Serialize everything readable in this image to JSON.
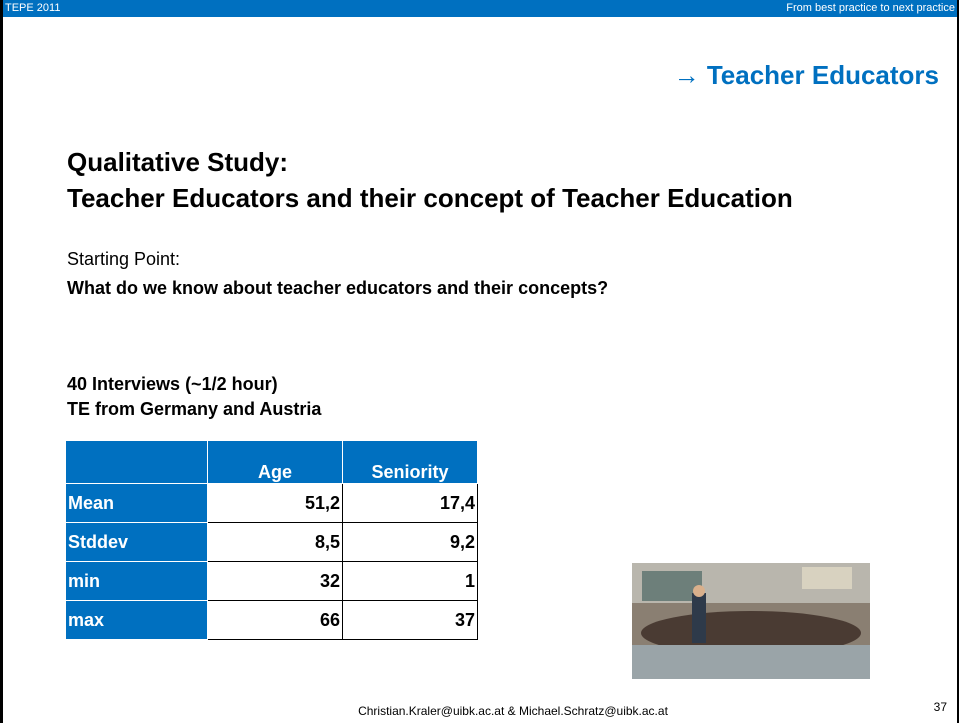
{
  "header": {
    "left": "TEPE 2011",
    "right": "From best practice to next practice"
  },
  "section": "→ Teacher Educators",
  "title": [
    "Qualitative Study:",
    "Teacher Educators and their concept of Teacher Education"
  ],
  "starting_point": {
    "label": "Starting Point:",
    "question": "What do we know about teacher educators and their concepts?"
  },
  "study": [
    "40 Interviews (~1/2 hour)",
    "TE from Germany and Austria"
  ],
  "table": {
    "header": [
      "Age",
      "Seniority"
    ],
    "rows": [
      [
        "Mean",
        "51,2",
        "17,4"
      ],
      [
        "Stddev",
        "8,5",
        "9,2"
      ],
      [
        "min",
        "32",
        "1"
      ],
      [
        "max",
        "66",
        "37"
      ]
    ]
  },
  "footer": {
    "contact": "Christian.Kraler@uibk.ac.at & Michael.Schratz@uibk.ac.at",
    "page": "37"
  }
}
